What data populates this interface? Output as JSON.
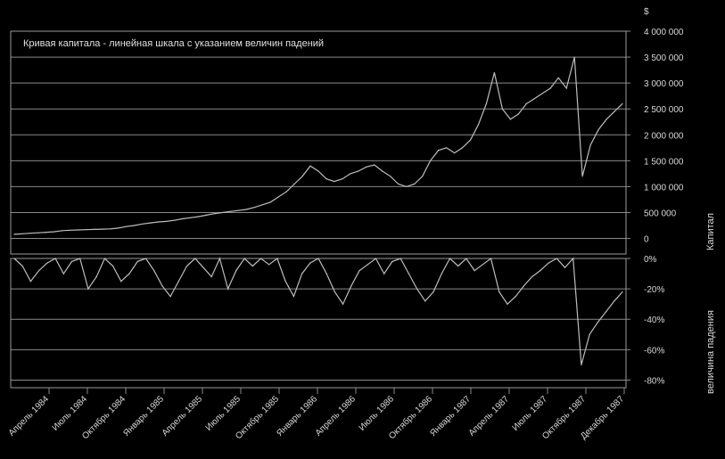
{
  "chart_data": [
    {
      "type": "line",
      "title": "Кривая капитала - линейная шкала с указанием величин падений",
      "unit": "$",
      "ylabel": "Капитал",
      "ylim": [
        -300000,
        4000000
      ],
      "yticks": [
        0,
        500000,
        1000000,
        1500000,
        2000000,
        2500000,
        3000000,
        3500000,
        4000000
      ],
      "ytick_labels": [
        "0",
        "500 000",
        "1 000 000",
        "1 500 000",
        "2 000 000",
        "2 500 000",
        "3 000 000",
        "3 500 000",
        "4 000 000"
      ],
      "grid": true,
      "series": [
        {
          "values": [
            80000,
            90000,
            100000,
            110000,
            120000,
            130000,
            150000,
            160000,
            165000,
            170000,
            175000,
            180000,
            185000,
            200000,
            230000,
            250000,
            280000,
            300000,
            320000,
            330000,
            350000,
            380000,
            400000,
            420000,
            450000,
            480000,
            500000,
            520000,
            540000,
            560000,
            600000,
            650000,
            700000,
            800000,
            900000,
            1050000,
            1200000,
            1400000,
            1300000,
            1150000,
            1100000,
            1150000,
            1250000,
            1300000,
            1380000,
            1420000,
            1300000,
            1200000,
            1050000,
            1000000,
            1050000,
            1200000,
            1500000,
            1700000,
            1750000,
            1650000,
            1750000,
            1900000,
            2200000,
            2600000,
            3200000,
            2500000,
            2300000,
            2400000,
            2600000,
            2700000,
            2800000,
            2900000,
            3100000,
            2900000,
            3500000,
            1200000,
            1800000,
            2100000,
            2300000,
            2450000,
            2600000
          ]
        }
      ]
    },
    {
      "type": "line",
      "ylabel": "величина падения",
      "ylim": [
        -85,
        0
      ],
      "yticks": [
        0,
        -20,
        -40,
        -60,
        -80
      ],
      "ytick_labels": [
        "0%",
        "-20%",
        "-40%",
        "-60%",
        "-80%"
      ],
      "grid": true,
      "series": [
        {
          "values": [
            0,
            -5,
            -15,
            -8,
            -3,
            0,
            -10,
            -2,
            0,
            -20,
            -12,
            0,
            -5,
            -15,
            -10,
            -2,
            0,
            -8,
            -18,
            -25,
            -15,
            -5,
            0,
            -6,
            -12,
            0,
            -20,
            -8,
            0,
            -5,
            0,
            -4,
            0,
            -15,
            -25,
            -10,
            -3,
            0,
            -10,
            -22,
            -30,
            -18,
            -8,
            -4,
            0,
            -10,
            -2,
            0,
            -10,
            -20,
            -28,
            -22,
            -10,
            0,
            -5,
            0,
            -8,
            -4,
            0,
            -22,
            -30,
            -25,
            -18,
            -12,
            -8,
            -3,
            0,
            -6,
            0,
            -70,
            -50,
            -42,
            -35,
            -28,
            -22
          ]
        }
      ],
      "x_tick_labels": [
        "Апрель 1984",
        "Июль 1984",
        "Октябрь 1984",
        "Январь 1985",
        "Апрель 1985",
        "Июль 1985",
        "Октябрь 1985",
        "Январь 1986",
        "Апрель 1986",
        "Июль 1986",
        "Октябрь 1986",
        "Январь 1987",
        "Апрель 1987",
        "Июль 1987",
        "Октябрь 1987",
        "Декабрь 1987"
      ]
    }
  ],
  "colors": {
    "background": "#000000",
    "line": "#bdbdbd",
    "grid": "#8a8a8a",
    "text": "#d8d8d8"
  }
}
